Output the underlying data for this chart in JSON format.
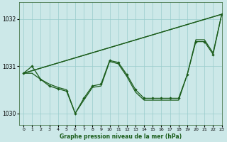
{
  "title": "Graphe pression niveau de la mer (hPa)",
  "background_color": "#cce8e8",
  "grid_color": "#99cccc",
  "line_color": "#1a5c1a",
  "xlim": [
    -0.5,
    23
  ],
  "ylim": [
    1029.75,
    1032.35
  ],
  "yticks": [
    1030,
    1031,
    1032
  ],
  "xtick_labels": [
    "0",
    "1",
    "2",
    "3",
    "4",
    "5",
    "6",
    "7",
    "8",
    "9",
    "10",
    "11",
    "12",
    "13",
    "14",
    "15",
    "16",
    "17",
    "18",
    "19",
    "20",
    "21",
    "22",
    "23"
  ],
  "xticks": [
    0,
    1,
    2,
    3,
    4,
    5,
    6,
    7,
    8,
    9,
    10,
    11,
    12,
    13,
    14,
    15,
    16,
    17,
    18,
    19,
    20,
    21,
    22,
    23
  ],
  "straight_line1": {
    "x": [
      0,
      23
    ],
    "y": [
      1030.85,
      1032.1
    ]
  },
  "straight_line2": {
    "x": [
      0,
      23
    ],
    "y": [
      1030.85,
      1032.1
    ]
  },
  "curve1": {
    "x": [
      0,
      1,
      2,
      3,
      4,
      5,
      6,
      7,
      8,
      9,
      10,
      11,
      12,
      13,
      14,
      15,
      16,
      17,
      18,
      19,
      20,
      21,
      22,
      23
    ],
    "y": [
      1030.85,
      1031.0,
      1030.72,
      1030.58,
      1030.52,
      1030.47,
      1030.0,
      1030.32,
      1030.58,
      1030.62,
      1031.12,
      1031.08,
      1030.82,
      1030.5,
      1030.32,
      1030.32,
      1030.32,
      1030.32,
      1030.32,
      1030.82,
      1031.52,
      1031.52,
      1031.25,
      1032.1
    ],
    "has_markers": true
  },
  "curve2": {
    "x": [
      0,
      1,
      2,
      3,
      4,
      5,
      6,
      7,
      8,
      9,
      10,
      11,
      12,
      13,
      14,
      15,
      16,
      17,
      18,
      19,
      20,
      21,
      22,
      23
    ],
    "y": [
      1030.85,
      1030.85,
      1030.72,
      1030.62,
      1030.55,
      1030.5,
      1030.0,
      1030.28,
      1030.55,
      1030.58,
      1031.1,
      1031.05,
      1030.78,
      1030.45,
      1030.28,
      1030.28,
      1030.28,
      1030.28,
      1030.28,
      1030.82,
      1031.56,
      1031.56,
      1031.28,
      1032.1
    ],
    "has_markers": false
  }
}
